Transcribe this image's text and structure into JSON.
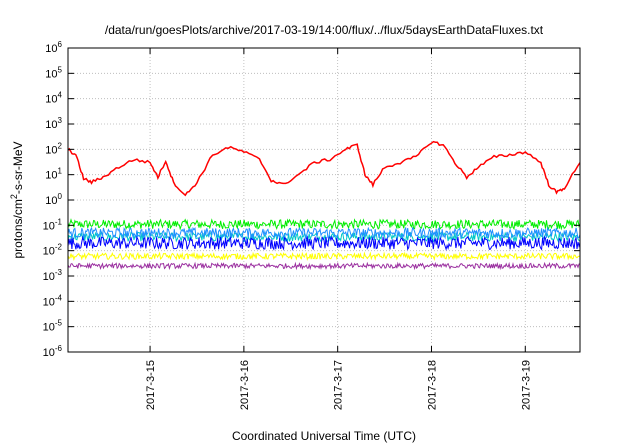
{
  "chart_data": {
    "type": "line",
    "title": "/data/run/goesPlots/archive/2017-03-19/14:00/flux/../flux/5daysEarthDataFluxes.txt",
    "xlabel": "Coordinated Universal Time (UTC)",
    "ylabel": {
      "pre": "protons/cm",
      "sup": "2",
      "post": "-s-sr-MeV"
    },
    "y_scale": "log",
    "ylim": [
      1e-06,
      1000000.0
    ],
    "xlim": [
      "2017-03-14T03:00",
      "2017-03-19T14:00"
    ],
    "grid": true,
    "legend": "none",
    "x_ticks": [
      "2017-3-15",
      "2017-3-16",
      "2017-3-17",
      "2017-3-18",
      "2017-3-19"
    ],
    "x_tick_dates": [
      "2017-03-15T00:00",
      "2017-03-16T00:00",
      "2017-03-17T00:00",
      "2017-03-18T00:00",
      "2017-03-19T00:00"
    ],
    "y_ticks": [
      {
        "exp": "-6",
        "value": 1e-06
      },
      {
        "exp": "-5",
        "value": 1e-05
      },
      {
        "exp": "-4",
        "value": 0.0001
      },
      {
        "exp": "-3",
        "value": 0.001
      },
      {
        "exp": "-2",
        "value": 0.01
      },
      {
        "exp": "-1",
        "value": 0.1
      },
      {
        "exp": "0",
        "value": 1
      },
      {
        "exp": "1",
        "value": 10
      },
      {
        "exp": "2",
        "value": 100
      },
      {
        "exp": "3",
        "value": 1000
      },
      {
        "exp": "4",
        "value": 10000
      },
      {
        "exp": "5",
        "value": 100000
      },
      {
        "exp": "6",
        "value": 1000000
      }
    ],
    "series": [
      {
        "color": "#ff0000",
        "x": [
          "2017-03-14T03:00",
          "2017-03-14T05:00",
          "2017-03-14T07:00",
          "2017-03-14T09:00",
          "2017-03-14T12:00",
          "2017-03-14T16:00",
          "2017-03-14T20:00",
          "2017-03-15T00:00",
          "2017-03-15T02:00",
          "2017-03-15T04:00",
          "2017-03-15T06:00",
          "2017-03-15T09:00",
          "2017-03-15T12:00",
          "2017-03-15T16:00",
          "2017-03-15T20:00",
          "2017-03-16T00:00",
          "2017-03-16T04:00",
          "2017-03-16T07:00",
          "2017-03-16T10:00",
          "2017-03-16T14:00",
          "2017-03-16T18:00",
          "2017-03-16T22:00",
          "2017-03-17T02:00",
          "2017-03-17T05:00",
          "2017-03-17T07:00",
          "2017-03-17T09:00",
          "2017-03-17T12:00",
          "2017-03-17T16:00",
          "2017-03-17T20:00",
          "2017-03-18T00:00",
          "2017-03-18T03:00",
          "2017-03-18T06:00",
          "2017-03-18T09:00",
          "2017-03-18T12:00",
          "2017-03-18T16:00",
          "2017-03-18T20:00",
          "2017-03-19T00:00",
          "2017-03-19T04:00",
          "2017-03-19T06:00",
          "2017-03-19T08:00",
          "2017-03-19T10:00",
          "2017-03-19T14:00"
        ],
        "values": [
          100,
          60,
          7,
          5,
          8,
          20,
          40,
          30,
          8,
          35,
          5,
          1.5,
          5,
          60,
          120,
          80,
          40,
          6,
          4,
          10,
          30,
          40,
          100,
          150,
          10,
          4,
          20,
          30,
          50,
          200,
          150,
          30,
          8,
          20,
          50,
          60,
          80,
          30,
          4,
          2,
          3,
          30
        ]
      },
      {
        "color": "#00ee00",
        "level": 0.11,
        "spread": 0.18
      },
      {
        "color": "#00c8c8",
        "level": 0.035,
        "spread": 0.18
      },
      {
        "color": "#0000ff",
        "level": 0.02,
        "spread": 0.25
      },
      {
        "color": "#1e90ff",
        "level": 0.05,
        "spread": 0.2
      },
      {
        "color": "#ffff00",
        "level": 0.006,
        "spread": 0.12
      },
      {
        "color": "#9b30a0",
        "level": 0.0025,
        "spread": 0.1
      }
    ]
  }
}
